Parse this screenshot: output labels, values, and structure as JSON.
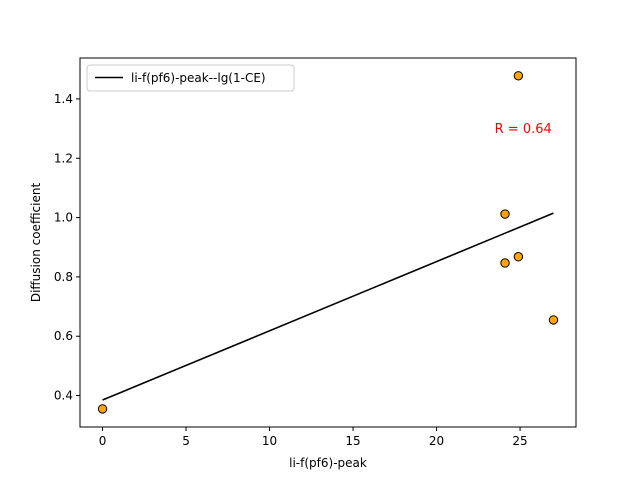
{
  "chart_data": {
    "type": "scatter",
    "title": "",
    "xlabel": "li-f(pf6)-peak",
    "ylabel": "Diffusion coefficient",
    "xlim": [
      -1.35,
      28.35
    ],
    "ylim": [
      0.294,
      1.538
    ],
    "x_ticks": [
      0,
      5,
      10,
      15,
      20,
      25
    ],
    "y_ticks": [
      0.4,
      0.6,
      0.8,
      1.0,
      1.2,
      1.4
    ],
    "grid": false,
    "legend_position": "top-left",
    "series": [
      {
        "kind": "line",
        "name": "li-f(pf6)-peak--lg(1-CE)",
        "color": "#000000",
        "x": [
          0,
          27
        ],
        "y": [
          0.385,
          1.015
        ]
      },
      {
        "kind": "scatter",
        "color": "#ffa500",
        "edgecolor": "#000000",
        "x": [
          0,
          24.1,
          24.9,
          24.1,
          24.9,
          27.0
        ],
        "y": [
          0.355,
          1.012,
          1.478,
          0.847,
          0.868,
          0.655
        ]
      }
    ],
    "annotations": [
      {
        "text": "R = 0.64",
        "color": "#ff0000",
        "x": 26.9,
        "y": 1.285
      }
    ]
  }
}
